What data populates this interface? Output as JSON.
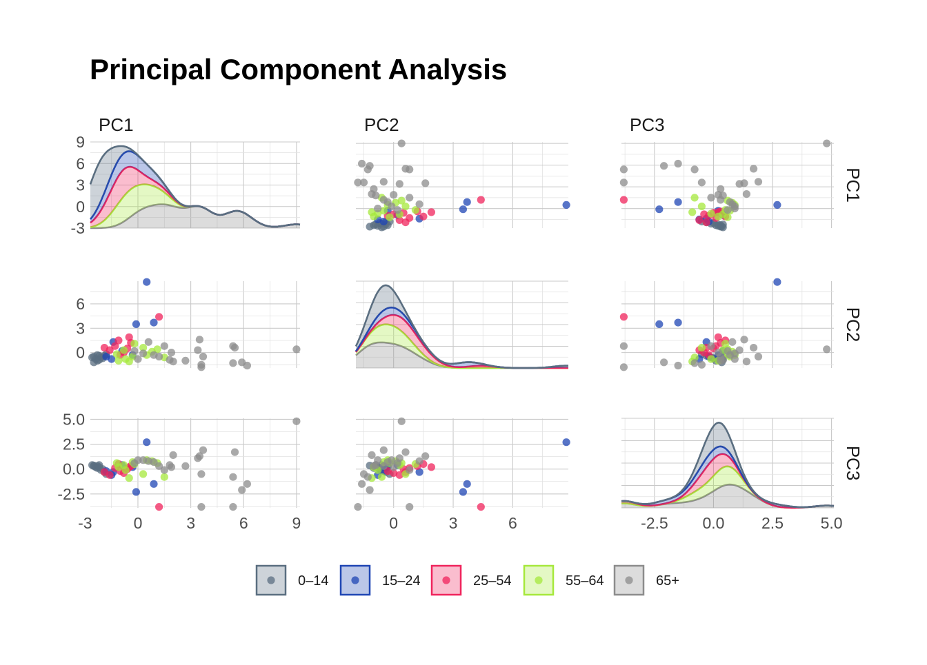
{
  "chart_data": {
    "type": "scatter",
    "title": "Principal Component Analysis",
    "variables": [
      "PC1",
      "PC2",
      "PC3"
    ],
    "ranges": {
      "PC1": [
        -2.7,
        9.2
      ],
      "PC2": [
        -1.9,
        8.8
      ],
      "PC3": [
        -3.9,
        5.1
      ]
    },
    "ticks": {
      "PC1": [
        -3,
        0,
        3,
        6,
        9
      ],
      "PC2": [
        0,
        3,
        6
      ],
      "PC3": [
        -2.5,
        0.0,
        2.5,
        5.0
      ]
    },
    "tick_labels": {
      "PC1": [
        "-3",
        "0",
        "3",
        "6",
        "9"
      ],
      "PC2": [
        "0",
        "3",
        "6"
      ],
      "PC3": [
        "-2.5",
        "0.0",
        "2.5",
        "5.0"
      ]
    },
    "groups": [
      {
        "name": "0–14",
        "color": "#5a6e80"
      },
      {
        "name": "15–24",
        "color": "#1f46b4"
      },
      {
        "name": "25–54",
        "color": "#f0245c"
      },
      {
        "name": "55–64",
        "color": "#a6e83c"
      },
      {
        "name": "65+",
        "color": "#8c8c8c"
      }
    ],
    "points": [
      {
        "group": "0–14",
        "pc1": -2.5,
        "pc2": -0.5,
        "pc3": 0.3
      },
      {
        "group": "0–14",
        "pc1": -2.4,
        "pc2": -0.8,
        "pc3": 0.2
      },
      {
        "group": "0–14",
        "pc1": -2.3,
        "pc2": -1.0,
        "pc3": 0.1
      },
      {
        "group": "0–14",
        "pc1": -2.2,
        "pc2": -0.9,
        "pc3": 0.4
      },
      {
        "group": "0–14",
        "pc1": -2.1,
        "pc2": -0.6,
        "pc3": -0.1
      },
      {
        "group": "0–14",
        "pc1": -2.0,
        "pc2": -0.7,
        "pc3": 0.0
      },
      {
        "group": "0–14",
        "pc1": -1.9,
        "pc2": -0.4,
        "pc3": -0.3
      },
      {
        "group": "0–14",
        "pc1": -1.8,
        "pc2": -0.2,
        "pc3": -0.5
      },
      {
        "group": "0–14",
        "pc1": -2.5,
        "pc2": -1.2,
        "pc3": 0.35
      },
      {
        "group": "0–14",
        "pc1": -2.3,
        "pc2": -0.3,
        "pc3": 0.3
      },
      {
        "group": "0–14",
        "pc1": -2.6,
        "pc2": -0.6,
        "pc3": 0.4
      },
      {
        "group": "0–14",
        "pc1": -2.2,
        "pc2": -0.4,
        "pc3": 0.2
      },
      {
        "group": "15–24",
        "pc1": 0.5,
        "pc2": 8.7,
        "pc3": 2.7
      },
      {
        "group": "15–24",
        "pc1": -0.1,
        "pc2": 3.5,
        "pc3": -2.3
      },
      {
        "group": "15–24",
        "pc1": 0.9,
        "pc2": 3.7,
        "pc3": -1.5
      },
      {
        "group": "15–24",
        "pc1": -1.4,
        "pc2": 1.3,
        "pc3": -0.3
      },
      {
        "group": "15–24",
        "pc1": -1.8,
        "pc2": -0.5,
        "pc3": -0.2
      },
      {
        "group": "15–24",
        "pc1": -0.9,
        "pc2": 0.2,
        "pc3": 0.4
      },
      {
        "group": "15–24",
        "pc1": -1.5,
        "pc2": -0.8,
        "pc3": -0.6
      },
      {
        "group": "15–24",
        "pc1": -0.3,
        "pc2": -0.3,
        "pc3": 0.2
      },
      {
        "group": "25–54",
        "pc1": 1.2,
        "pc2": 4.4,
        "pc3": -3.8
      },
      {
        "group": "25–54",
        "pc1": -1.9,
        "pc2": 0.6,
        "pc3": -0.3
      },
      {
        "group": "25–54",
        "pc1": -1.1,
        "pc2": 1.5,
        "pc3": 0.5
      },
      {
        "group": "25–54",
        "pc1": -0.5,
        "pc2": 1.9,
        "pc3": 0.2
      },
      {
        "group": "25–54",
        "pc1": -1.6,
        "pc2": 0.3,
        "pc3": -0.6
      },
      {
        "group": "25–54",
        "pc1": -1.3,
        "pc2": 0.8,
        "pc3": 0.1
      },
      {
        "group": "25–54",
        "pc1": -0.8,
        "pc2": 0.0,
        "pc3": -0.4
      },
      {
        "group": "25–54",
        "pc1": -0.6,
        "pc2": 0.5,
        "pc3": 0.0
      },
      {
        "group": "25–54",
        "pc1": -1.0,
        "pc2": -0.3,
        "pc3": -0.2
      },
      {
        "group": "25–54",
        "pc1": -0.4,
        "pc2": 1.2,
        "pc3": 0.3
      },
      {
        "group": "55–64",
        "pc1": -1.2,
        "pc2": -0.2,
        "pc3": 0.6
      },
      {
        "group": "55–64",
        "pc1": -0.8,
        "pc2": 0.3,
        "pc3": 0.4
      },
      {
        "group": "55–64",
        "pc1": -0.3,
        "pc2": -0.5,
        "pc3": 0.7
      },
      {
        "group": "55–64",
        "pc1": 0.3,
        "pc2": 0.6,
        "pc3": -0.5
      },
      {
        "group": "55–64",
        "pc1": 0.8,
        "pc2": 0.1,
        "pc3": 0.8
      },
      {
        "group": "55–64",
        "pc1": 1.5,
        "pc2": -0.6,
        "pc3": -0.8
      },
      {
        "group": "55–64",
        "pc1": -1.1,
        "pc2": -1.0,
        "pc3": 0.2
      },
      {
        "group": "55–64",
        "pc1": -0.2,
        "pc2": 1.1,
        "pc3": 0.5
      },
      {
        "group": "55–64",
        "pc1": 0.5,
        "pc2": -0.3,
        "pc3": 0.9
      },
      {
        "group": "55–64",
        "pc1": -0.7,
        "pc2": -0.8,
        "pc3": -0.1
      },
      {
        "group": "55–64",
        "pc1": 1.1,
        "pc2": 0.4,
        "pc3": 0.6
      },
      {
        "group": "55–64",
        "pc1": -0.5,
        "pc2": -1.1,
        "pc3": -0.9
      },
      {
        "group": "65+",
        "pc1": 9.0,
        "pc2": 0.4,
        "pc3": 4.8
      },
      {
        "group": "65+",
        "pc1": 5.4,
        "pc2": 0.8,
        "pc3": -3.8
      },
      {
        "group": "65+",
        "pc1": 5.5,
        "pc2": 0.6,
        "pc3": 1.7
      },
      {
        "group": "65+",
        "pc1": 6.2,
        "pc2": -1.6,
        "pc3": -1.5
      },
      {
        "group": "65+",
        "pc1": 5.9,
        "pc2": -1.2,
        "pc3": -2.1
      },
      {
        "group": "65+",
        "pc1": 5.4,
        "pc2": -1.3,
        "pc3": -0.8
      },
      {
        "group": "65+",
        "pc1": 3.6,
        "pc2": -1.8,
        "pc3": -3.8
      },
      {
        "group": "65+",
        "pc1": 3.5,
        "pc2": 1.6,
        "pc3": 1.3
      },
      {
        "group": "65+",
        "pc1": 3.7,
        "pc2": -0.5,
        "pc3": 1.9
      },
      {
        "group": "65+",
        "pc1": 3.4,
        "pc2": 0.3,
        "pc3": 1.1
      },
      {
        "group": "65+",
        "pc1": 2.7,
        "pc2": -1.0,
        "pc3": 0.3
      },
      {
        "group": "65+",
        "pc1": 3.6,
        "pc2": -1.5,
        "pc3": -0.5
      },
      {
        "group": "65+",
        "pc1": 2.0,
        "pc2": -1.1,
        "pc3": 1.4
      },
      {
        "group": "65+",
        "pc1": 1.5,
        "pc2": 0.8,
        "pc3": -0.1
      },
      {
        "group": "65+",
        "pc1": 1.2,
        "pc2": -0.5,
        "pc3": 0.3
      },
      {
        "group": "65+",
        "pc1": 0.9,
        "pc2": -0.3,
        "pc3": 0.7
      },
      {
        "group": "65+",
        "pc1": 0.6,
        "pc2": 1.3,
        "pc3": 0.8
      },
      {
        "group": "65+",
        "pc1": 0.3,
        "pc2": -0.1,
        "pc3": 0.9
      },
      {
        "group": "65+",
        "pc1": 0.0,
        "pc2": -0.8,
        "pc3": 0.9
      },
      {
        "group": "65+",
        "pc1": 1.8,
        "pc2": -0.9,
        "pc3": 0.4
      },
      {
        "group": "65+",
        "pc1": 1.9,
        "pc2": 0.0,
        "pc3": 0.2
      },
      {
        "group": "65+",
        "pc1": -0.2,
        "pc2": 0.2,
        "pc3": 0.6
      }
    ],
    "legend_position": "bottom",
    "grid": true
  }
}
